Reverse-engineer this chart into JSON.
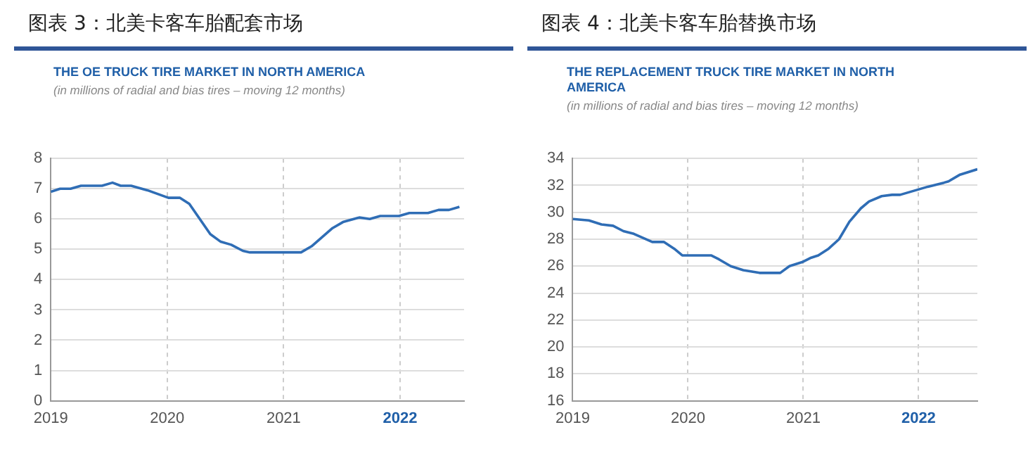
{
  "chart_data": [
    {
      "type": "line",
      "title": "图表 3：北美卡客车胎配套市场",
      "subtitle": "THE OE TRUCK TIRE MARKET IN NORTH AMERICA",
      "annotations": [
        "(in millions of radial and bias tires – moving 12 months)"
      ],
      "series": [
        {
          "color": "#2f6db5",
          "x": [
            2019,
            2019.08,
            2019.17,
            2019.26,
            2019.44,
            2019.53,
            2019.6,
            2019.69,
            2019.83,
            2020.01,
            2020.11,
            2020.19,
            2020.28,
            2020.37,
            2020.46,
            2020.55,
            2020.65,
            2020.71,
            2020.96,
            2021.15,
            2021.24,
            2021.33,
            2021.42,
            2021.51,
            2021.65,
            2021.74,
            2021.83,
            2021.99,
            2022.08,
            2022.24,
            2022.33,
            2022.42,
            2022.51
          ],
          "values": [
            6.9,
            7.0,
            7.0,
            7.1,
            7.1,
            7.2,
            7.1,
            7.1,
            6.95,
            6.7,
            6.7,
            6.5,
            6.0,
            5.5,
            5.25,
            5.15,
            4.95,
            4.9,
            4.9,
            4.9,
            5.1,
            5.4,
            5.7,
            5.9,
            6.05,
            6.0,
            6.1,
            6.1,
            6.2,
            6.2,
            6.3,
            6.3,
            6.4
          ]
        }
      ],
      "xlim": [
        2019,
        2022.55
      ],
      "xticks": [
        2019,
        2020,
        2021,
        2022
      ],
      "ylim": [
        0,
        8
      ],
      "yticks": [
        0,
        1,
        2,
        3,
        4,
        5,
        6,
        7,
        8
      ],
      "grid": true,
      "marker": "none",
      "line_style": "solid"
    },
    {
      "type": "line",
      "title": "图表 4：北美卡客车胎替换市场",
      "subtitle": "THE REPLACEMENT TRUCK TIRE MARKET IN NORTH AMERICA",
      "annotations": [
        "(in millions of radial and bias tires – moving 12 months)"
      ],
      "series": [
        {
          "color": "#2f6db5",
          "x": [
            2019,
            2019.14,
            2019.25,
            2019.35,
            2019.44,
            2019.53,
            2019.69,
            2019.79,
            2019.88,
            2019.95,
            2020.2,
            2020.27,
            2020.37,
            2020.48,
            2020.62,
            2020.8,
            2020.88,
            2020.99,
            2021.06,
            2021.13,
            2021.22,
            2021.31,
            2021.4,
            2021.5,
            2021.57,
            2021.68,
            2021.77,
            2021.84,
            2021.96,
            2022.08,
            2022.22,
            2022.26,
            2022.36,
            2022.51
          ],
          "values": [
            29.5,
            29.4,
            29.1,
            29.0,
            28.6,
            28.4,
            27.8,
            27.8,
            27.3,
            26.8,
            26.8,
            26.5,
            26.0,
            25.7,
            25.5,
            25.5,
            26.0,
            26.3,
            26.6,
            26.8,
            27.3,
            28.0,
            29.3,
            30.3,
            30.8,
            31.2,
            31.3,
            31.3,
            31.6,
            31.9,
            32.2,
            32.3,
            32.8,
            33.2
          ]
        }
      ],
      "xlim": [
        2019,
        2022.51
      ],
      "xticks": [
        2019,
        2020,
        2021,
        2022
      ],
      "ylim": [
        16,
        34
      ],
      "yticks": [
        16,
        18,
        20,
        22,
        24,
        26,
        28,
        30,
        32,
        34
      ],
      "grid": true,
      "marker": "none",
      "line_style": "solid"
    }
  ]
}
